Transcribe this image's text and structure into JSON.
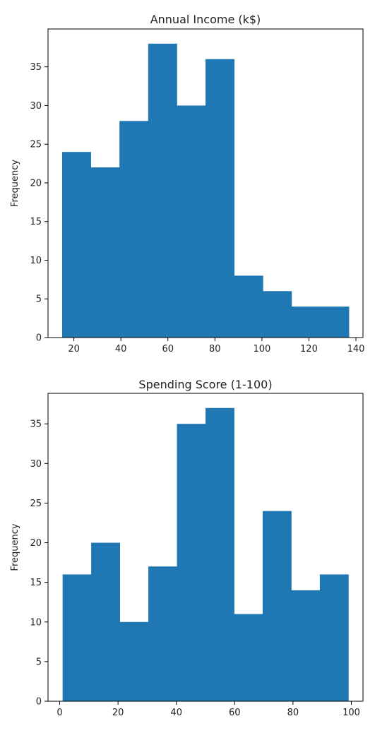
{
  "chart_data": [
    {
      "type": "bar",
      "title": "Annual Income (k$)",
      "xlabel": "",
      "ylabel": "Frequency",
      "bin_edges": [
        15,
        27.2,
        39.4,
        51.6,
        63.8,
        76,
        88.2,
        100.4,
        112.6,
        124.8,
        137
      ],
      "values": [
        24,
        22,
        28,
        38,
        30,
        36,
        8,
        6,
        4,
        4
      ],
      "xlim": [
        9,
        143
      ],
      "ylim": [
        0,
        39.9
      ],
      "xticks": [
        20,
        40,
        60,
        80,
        100,
        120,
        140
      ],
      "yticks": [
        0,
        5,
        10,
        15,
        20,
        25,
        30,
        35
      ],
      "grid": false,
      "bar_color": "#1f77b4"
    },
    {
      "type": "bar",
      "title": "Spending Score (1-100)",
      "xlabel": "",
      "ylabel": "Frequency",
      "bin_edges": [
        1,
        10.8,
        20.6,
        30.4,
        40.2,
        50,
        59.8,
        69.6,
        79.4,
        89.2,
        99
      ],
      "values": [
        16,
        20,
        10,
        17,
        35,
        37,
        11,
        24,
        14,
        16
      ],
      "xlim": [
        -4,
        104
      ],
      "ylim": [
        0,
        38.85
      ],
      "xticks": [
        0,
        20,
        40,
        60,
        80,
        100
      ],
      "yticks": [
        0,
        5,
        10,
        15,
        20,
        25,
        30,
        35
      ],
      "grid": false,
      "bar_color": "#1f77b4"
    }
  ]
}
